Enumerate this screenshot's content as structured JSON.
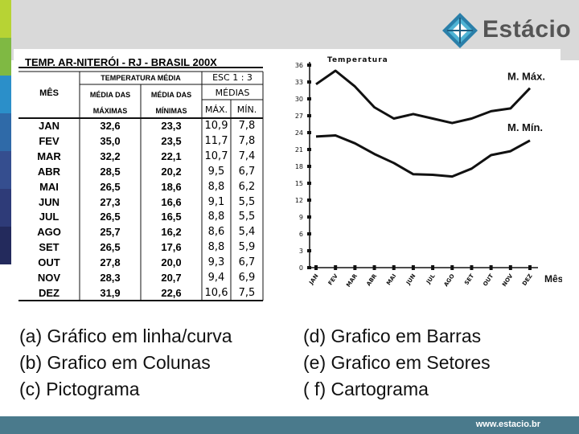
{
  "brand": {
    "name": "Estácio",
    "url": "www.estacio.br"
  },
  "table": {
    "title": "TEMP. AR-NITERÓI - RJ - BRASIL  200X",
    "header_mes": "MÊS",
    "header_temp": "TEMPERATURA MÉDIA",
    "header_esc": "ESC 1 : 3",
    "header_medias_max": "MÉDIA DAS",
    "header_medias_max2": "MÁXIMAS",
    "header_medias_min": "MÉDIA DAS",
    "header_medias_min2": "MÍNIMAS",
    "header_medias": "MÉDIAS",
    "header_max": "MÁX.",
    "header_min": "MÍN.",
    "rows": [
      {
        "mes": "JAN",
        "max": "32,6",
        "min": "23,3",
        "emax": "10,9",
        "emin": "7,8"
      },
      {
        "mes": "FEV",
        "max": "35,0",
        "min": "23,5",
        "emax": "11,7",
        "emin": "7,8"
      },
      {
        "mes": "MAR",
        "max": "32,2",
        "min": "22,1",
        "emax": "10,7",
        "emin": "7,4"
      },
      {
        "mes": "ABR",
        "max": "28,5",
        "min": "20,2",
        "emax": "9,5",
        "emin": "6,7"
      },
      {
        "mes": "MAI",
        "max": "26,5",
        "min": "18,6",
        "emax": "8,8",
        "emin": "6,2"
      },
      {
        "mes": "JUN",
        "max": "27,3",
        "min": "16,6",
        "emax": "9,1",
        "emin": "5,5"
      },
      {
        "mes": "JUL",
        "max": "26,5",
        "min": "16,5",
        "emax": "8,8",
        "emin": "5,5"
      },
      {
        "mes": "AGO",
        "max": "25,7",
        "min": "16,2",
        "emax": "8,6",
        "emin": "5,4"
      },
      {
        "mes": "SET",
        "max": "26,5",
        "min": "17,6",
        "emax": "8,8",
        "emin": "5,9"
      },
      {
        "mes": "OUT",
        "max": "27,8",
        "min": "20,0",
        "emax": "9,3",
        "emin": "6,7"
      },
      {
        "mes": "NOV",
        "max": "28,3",
        "min": "20,7",
        "emax": "9,4",
        "emin": "6,9"
      },
      {
        "mes": "DEZ",
        "max": "31,9",
        "min": "22,6",
        "emax": "10,6",
        "emin": "7,5"
      }
    ]
  },
  "chart_data": {
    "type": "line",
    "title": "Temperatura",
    "xlabel": "Mês",
    "ylabel": "",
    "categories": [
      "JAN",
      "FEV",
      "MAR",
      "ABR",
      "MAI",
      "JUN",
      "JUL",
      "AGO",
      "SET",
      "OUT",
      "NOV",
      "DEZ"
    ],
    "yticks": [
      0,
      3,
      6,
      9,
      12,
      15,
      18,
      21,
      24,
      27,
      30,
      33,
      36
    ],
    "ylim": [
      0,
      36
    ],
    "series": [
      {
        "name": "M. Máx.",
        "values": [
          32.6,
          35.0,
          32.2,
          28.5,
          26.5,
          27.3,
          26.5,
          25.7,
          26.5,
          27.8,
          28.3,
          31.9
        ]
      },
      {
        "name": "M. Mín.",
        "values": [
          23.3,
          23.5,
          22.1,
          20.2,
          18.6,
          16.6,
          16.5,
          16.2,
          17.6,
          20.0,
          20.7,
          22.6
        ]
      }
    ],
    "grid": false,
    "line_color": "#111111"
  },
  "options": {
    "a": "(a) Gráfico em linha/curva",
    "b": "(b) Grafico em Colunas",
    "c": "(c) Pictograma",
    "d": "(d) Grafico em Barras",
    "e": "(e) Grafico em Setores",
    "f": "( f)  Cartograma"
  },
  "colors": {
    "strip": [
      "#b7d334",
      "#7fb943",
      "#2b8fc9",
      "#2f6aa8",
      "#354e8f",
      "#2e3b78",
      "#232a5c"
    ],
    "footer": "#4a7a8c",
    "topband": "#d9d9d9"
  }
}
